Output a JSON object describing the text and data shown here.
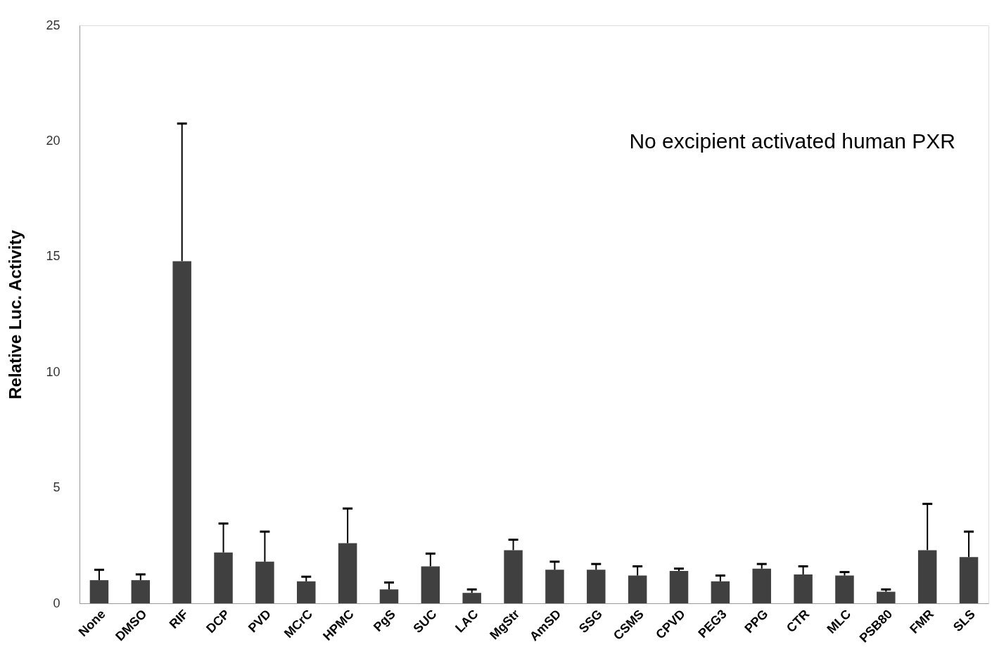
{
  "chart_data": {
    "type": "bar",
    "ylabel": "Relative Luc. Activity",
    "categories": [
      "None",
      "DMSO",
      "RIF",
      "DCP",
      "PVD",
      "MCrC",
      "HPMC",
      "PgS",
      "SUC",
      "LAC",
      "MgStr",
      "AmSD",
      "SSG",
      "CSMS",
      "CPVD",
      "PEG3",
      "PPG",
      "CTR",
      "MLC",
      "PSB80",
      "FMR",
      "SLS"
    ],
    "values": [
      1.0,
      1.0,
      14.8,
      2.2,
      1.8,
      0.95,
      2.6,
      0.6,
      1.6,
      0.45,
      2.3,
      1.45,
      1.45,
      1.2,
      1.4,
      0.95,
      1.5,
      1.25,
      1.2,
      0.5,
      2.3,
      2.0
    ],
    "errors": [
      [
        1.0,
        1.45
      ],
      [
        1.0,
        1.25
      ],
      [
        14.8,
        20.75
      ],
      [
        2.2,
        3.45
      ],
      [
        1.8,
        3.1
      ],
      [
        0.95,
        1.15
      ],
      [
        2.6,
        4.1
      ],
      [
        0.6,
        0.9
      ],
      [
        1.6,
        2.15
      ],
      [
        0.45,
        0.6
      ],
      [
        2.3,
        2.75
      ],
      [
        1.45,
        1.8
      ],
      [
        1.45,
        1.7
      ],
      [
        1.2,
        1.6
      ],
      [
        1.4,
        1.5
      ],
      [
        0.95,
        1.2
      ],
      [
        1.5,
        1.7
      ],
      [
        1.25,
        1.6
      ],
      [
        1.2,
        1.35
      ],
      [
        0.5,
        0.6
      ],
      [
        2.3,
        4.3
      ],
      [
        2.0,
        3.1
      ]
    ],
    "color": "#404040",
    "ylim": [
      0,
      25
    ],
    "yticks": [
      0,
      5,
      10,
      15,
      20,
      25
    ],
    "grid": false,
    "annotations": [
      "No excipient activated human PXR"
    ]
  }
}
